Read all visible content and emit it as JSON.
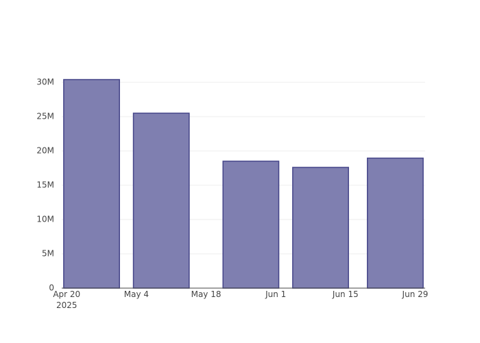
{
  "chart_data": {
    "type": "bar",
    "x": [
      "2025-04-25",
      "2025-05-09",
      "2025-05-27",
      "2025-06-10",
      "2025-06-25"
    ],
    "values": [
      30400000,
      25500000,
      18500000,
      17600000,
      18950000
    ],
    "color": "#7f7fb0",
    "edge_color": "#444488",
    "xlim": [
      "2025-04-19",
      "2025-07-01"
    ],
    "xticks": [
      {
        "value": "2025-04-20",
        "label": "Apr 20\n2025"
      },
      {
        "value": "2025-05-04",
        "label": "May 4"
      },
      {
        "value": "2025-05-18",
        "label": "May 18"
      },
      {
        "value": "2025-06-01",
        "label": "Jun 1"
      },
      {
        "value": "2025-06-15",
        "label": "Jun 15"
      },
      {
        "value": "2025-06-29",
        "label": "Jun 29"
      }
    ],
    "ylim": [
      0,
      32000000
    ],
    "yticks": [
      0,
      {
        "value": 5000000,
        "label": "5M"
      },
      {
        "value": 10000000,
        "label": "10M"
      },
      {
        "value": 15000000,
        "label": "15M"
      },
      {
        "value": 20000000,
        "label": "20M"
      },
      {
        "value": 25000000,
        "label": "25M"
      },
      {
        "value": 30000000,
        "label": "30M"
      }
    ],
    "grid": true
  }
}
